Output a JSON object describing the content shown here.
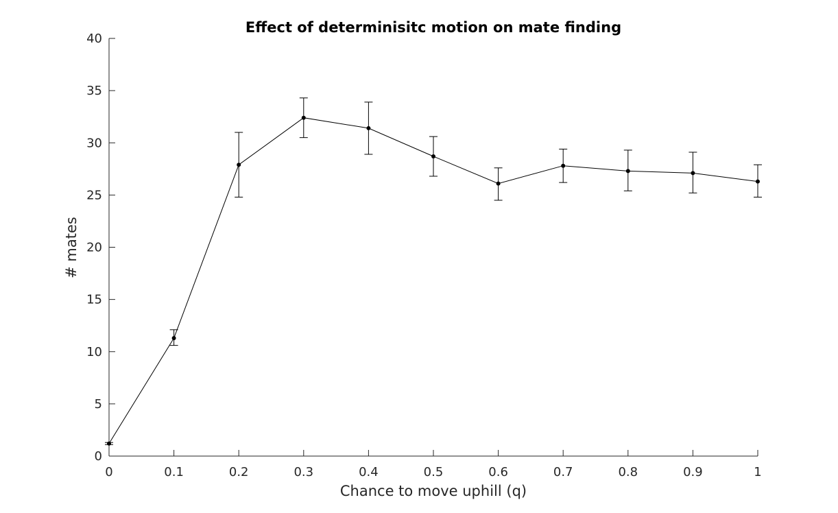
{
  "chart_data": {
    "type": "line",
    "title": "Effect of determinisitc motion on mate finding",
    "xlabel": "Chance to move uphill (q)",
    "ylabel": "# mates",
    "xlim": [
      0,
      1
    ],
    "ylim": [
      0,
      40
    ],
    "xticks": [
      0,
      0.1,
      0.2,
      0.3,
      0.4,
      0.5,
      0.6,
      0.7,
      0.8,
      0.9,
      1
    ],
    "xtick_labels": [
      "0",
      "0.1",
      "0.2",
      "0.3",
      "0.4",
      "0.5",
      "0.6",
      "0.7",
      "0.8",
      "0.9",
      "1"
    ],
    "yticks": [
      0,
      5,
      10,
      15,
      20,
      25,
      30,
      35,
      40
    ],
    "ytick_labels": [
      "0",
      "5",
      "10",
      "15",
      "20",
      "25",
      "30",
      "35",
      "40"
    ],
    "grid": false,
    "series": [
      {
        "x": [
          0,
          0.1,
          0.2,
          0.3,
          0.4,
          0.5,
          0.6,
          0.7,
          0.8,
          0.9,
          1
        ],
        "y": [
          1.2,
          11.3,
          27.9,
          32.4,
          31.4,
          28.7,
          26.1,
          27.8,
          27.3,
          27.1,
          26.3
        ],
        "err_low": [
          1.1,
          10.6,
          24.8,
          30.5,
          28.9,
          26.8,
          24.5,
          26.2,
          25.4,
          25.2,
          24.8
        ],
        "err_high": [
          1.3,
          12.1,
          31.0,
          34.3,
          33.9,
          30.6,
          27.6,
          29.4,
          29.3,
          29.1,
          27.9
        ],
        "color": "#000000",
        "marker": "dot",
        "error_bars": true
      }
    ]
  }
}
